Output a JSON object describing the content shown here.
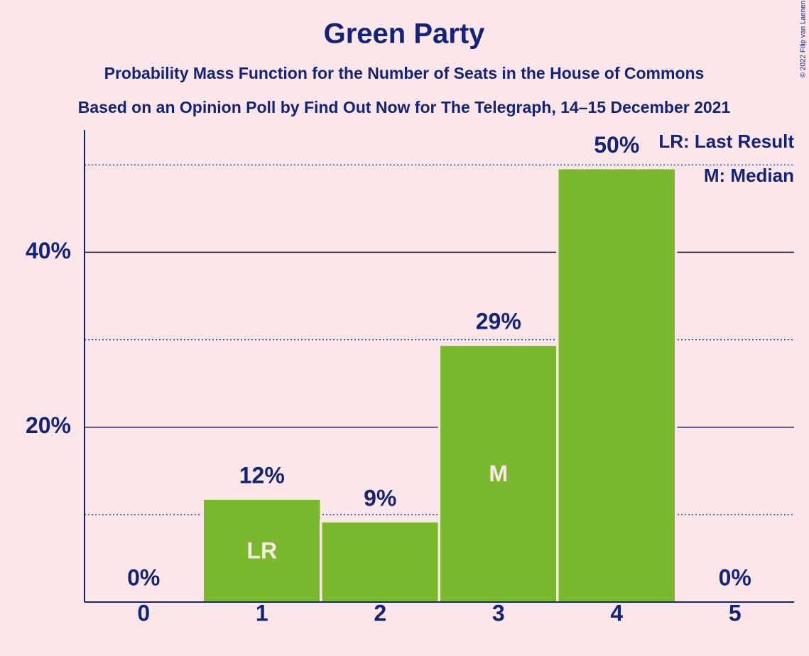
{
  "chart_data": {
    "type": "bar",
    "title": "Green Party",
    "subtitle": "Probability Mass Function for the Number of Seats in the House of Commons",
    "subtitle2": "Based on an Opinion Poll by Find Out Now for The Telegraph, 14–15 December 2021",
    "copyright": "© 2022 Filip van Laenen",
    "categories": [
      "0",
      "1",
      "2",
      "3",
      "4",
      "5"
    ],
    "values": [
      0,
      11.7,
      9.1,
      29.3,
      49.5,
      0
    ],
    "value_labels": [
      "0%",
      "12%",
      "9%",
      "29%",
      "50%",
      "0%"
    ],
    "color": "#7ab82d",
    "ylim": [
      0,
      54
    ],
    "yticks": [
      {
        "value": 20,
        "label": "20%"
      },
      {
        "value": 40,
        "label": "40%"
      }
    ],
    "minor_yticks": [
      10,
      30,
      50
    ],
    "grid": true,
    "markers": [
      {
        "label": "LR",
        "category": "1"
      },
      {
        "label": "M",
        "category": "3"
      }
    ],
    "legend": [
      "LR: Last Result",
      "M: Median"
    ]
  }
}
